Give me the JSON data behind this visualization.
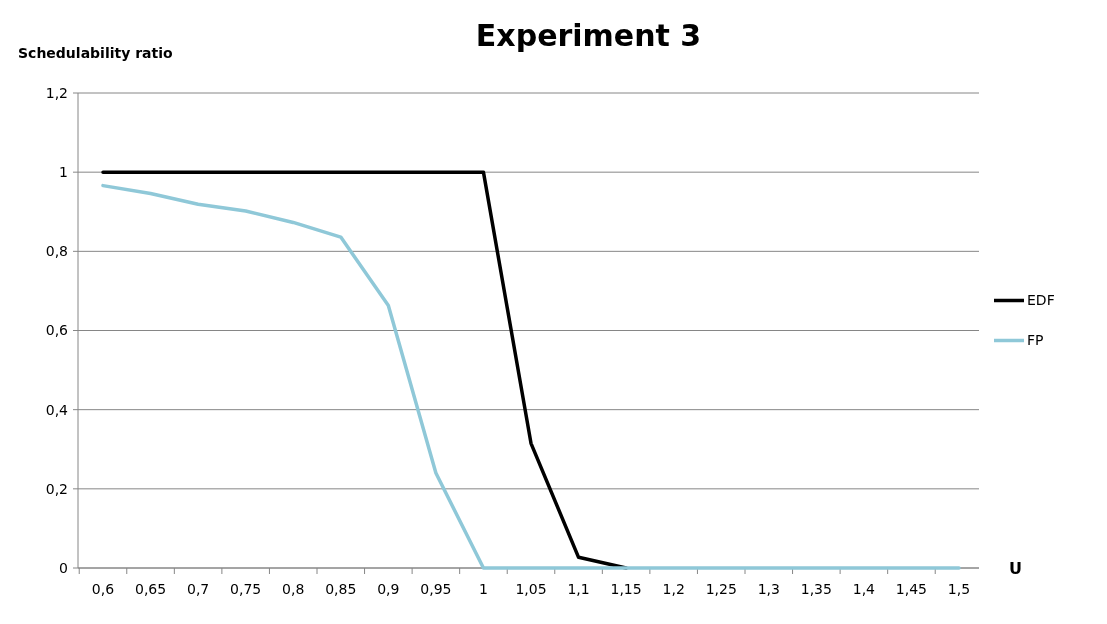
{
  "chart_data": {
    "type": "line",
    "title": "Experiment  3",
    "xlabel": "U",
    "ylabel": "Schedulability ratio",
    "categories": [
      "0,6",
      "0,65",
      "0,7",
      "0,75",
      "0,8",
      "0,85",
      "0,9",
      "0,95",
      "1",
      "1,05",
      "1,1",
      "1,15",
      "1,2",
      "1,25",
      "1,3",
      "1,35",
      "1,4",
      "1,45",
      "1,5"
    ],
    "series": [
      {
        "name": "EDF",
        "color": "#000000",
        "values": [
          1,
          1,
          1,
          1,
          1,
          1,
          1,
          1,
          1,
          0.315,
          0.027,
          0,
          null,
          null,
          null,
          null,
          null,
          null,
          null
        ]
      },
      {
        "name": "FP",
        "color": "#8fc8d8",
        "values": [
          0.966,
          0.946,
          0.919,
          0.902,
          0.873,
          0.836,
          0.663,
          0.24,
          0,
          0,
          0,
          0,
          0,
          0,
          0,
          0,
          0,
          0,
          0
        ]
      }
    ],
    "ylim": [
      0,
      1.2
    ],
    "yticks": [
      0,
      {
        "value": 0.2,
        "label": "0,2"
      },
      {
        "value": 0.4,
        "label": "0,4"
      },
      {
        "value": 0.6,
        "label": "0,6"
      },
      {
        "value": 0.8,
        "label": "0,8"
      },
      1,
      {
        "value": 1.2,
        "label": "1,2"
      }
    ],
    "grid": "y",
    "legend": "right",
    "marker": "none",
    "line_style": "solid"
  }
}
